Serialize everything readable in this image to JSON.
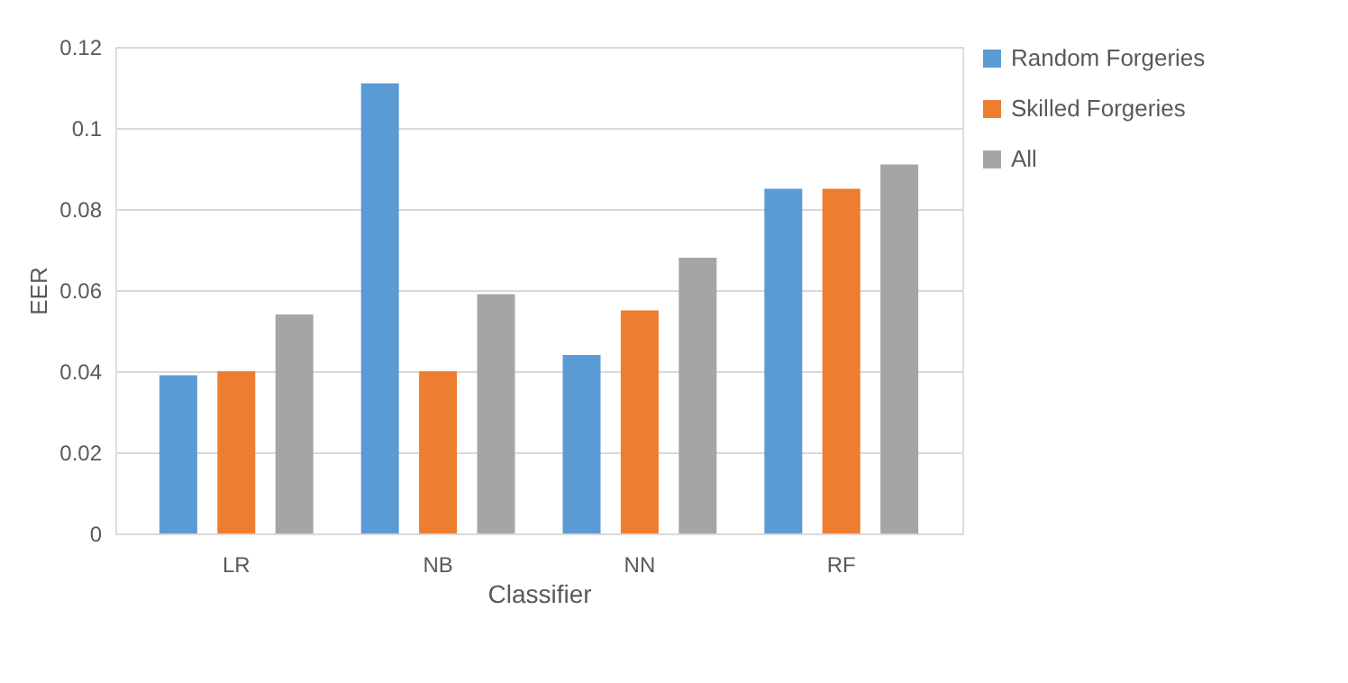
{
  "chart_data": {
    "type": "bar",
    "xlabel": "Classifier",
    "ylabel": "EER",
    "categories": [
      "LR",
      "NB",
      "NN",
      "RF"
    ],
    "series": [
      {
        "name": "Random Forgeries",
        "color": "#5b9bd5",
        "values": [
          0.039,
          0.111,
          0.044,
          0.085
        ]
      },
      {
        "name": "Skilled Forgeries",
        "color": "#ed7d31",
        "values": [
          0.04,
          0.04,
          0.055,
          0.085
        ]
      },
      {
        "name": "All",
        "color": "#a5a5a5",
        "values": [
          0.054,
          0.059,
          0.068,
          0.091
        ]
      }
    ],
    "ylim": [
      0,
      0.12
    ],
    "yticks": [
      0,
      0.02,
      0.04,
      0.06,
      0.08,
      0.1,
      0.12
    ],
    "grid": "y",
    "legend": "right"
  }
}
